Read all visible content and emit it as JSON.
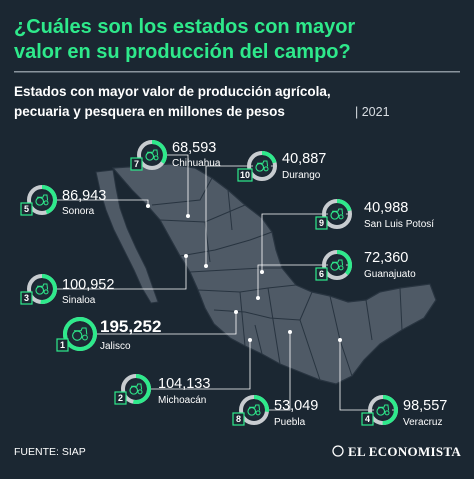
{
  "header": {
    "title_line1": "¿Cuáles son los estados con mayor",
    "title_line2": "valor en su producción del campo?",
    "subtitle_line1": "Estados con mayor valor de producción agrícola,",
    "subtitle_line2": "pecuaria y pesquera en millones de pesos",
    "year": "| 2021"
  },
  "footer": {
    "source": "FUENTE: SIAP",
    "brand": "EL ECONOMISTA"
  },
  "colors": {
    "background": "#1b2732",
    "accent": "#2ee98b",
    "map_fill": "#4f5a66",
    "map_stroke": "#283440",
    "ring_track": "#c8ccd0",
    "icon_bg": "#1e2a36"
  },
  "chart_data": {
    "type": "ranking",
    "title": "Estados con mayor valor de producción agrícola, pecuaria y pesquera en millones de pesos",
    "unit": "millones de pesos",
    "year": "2021",
    "items": [
      {
        "rank": "1",
        "state": "Jalisco",
        "value": 195252,
        "label": "195,252"
      },
      {
        "rank": "2",
        "state": "Michoacán",
        "value": 104133,
        "label": "104,133"
      },
      {
        "rank": "3",
        "state": "Sinaloa",
        "value": 100952,
        "label": "100,952"
      },
      {
        "rank": "4",
        "state": "Veracruz",
        "value": 98557,
        "label": "98,557"
      },
      {
        "rank": "5",
        "state": "Sonora",
        "value": 86943,
        "label": "86,943"
      },
      {
        "rank": "6",
        "state": "Guanajuato",
        "value": 72360,
        "label": "72,360"
      },
      {
        "rank": "7",
        "state": "Chihuahua",
        "value": 68593,
        "label": "68,593"
      },
      {
        "rank": "8",
        "state": "Puebla",
        "value": 53049,
        "label": "53,049"
      },
      {
        "rank": "9",
        "state": "San Luis Potosí",
        "value": 40988,
        "label": "40,988"
      },
      {
        "rank": "10",
        "state": "Durango",
        "value": 40887,
        "label": "40,887"
      }
    ]
  }
}
